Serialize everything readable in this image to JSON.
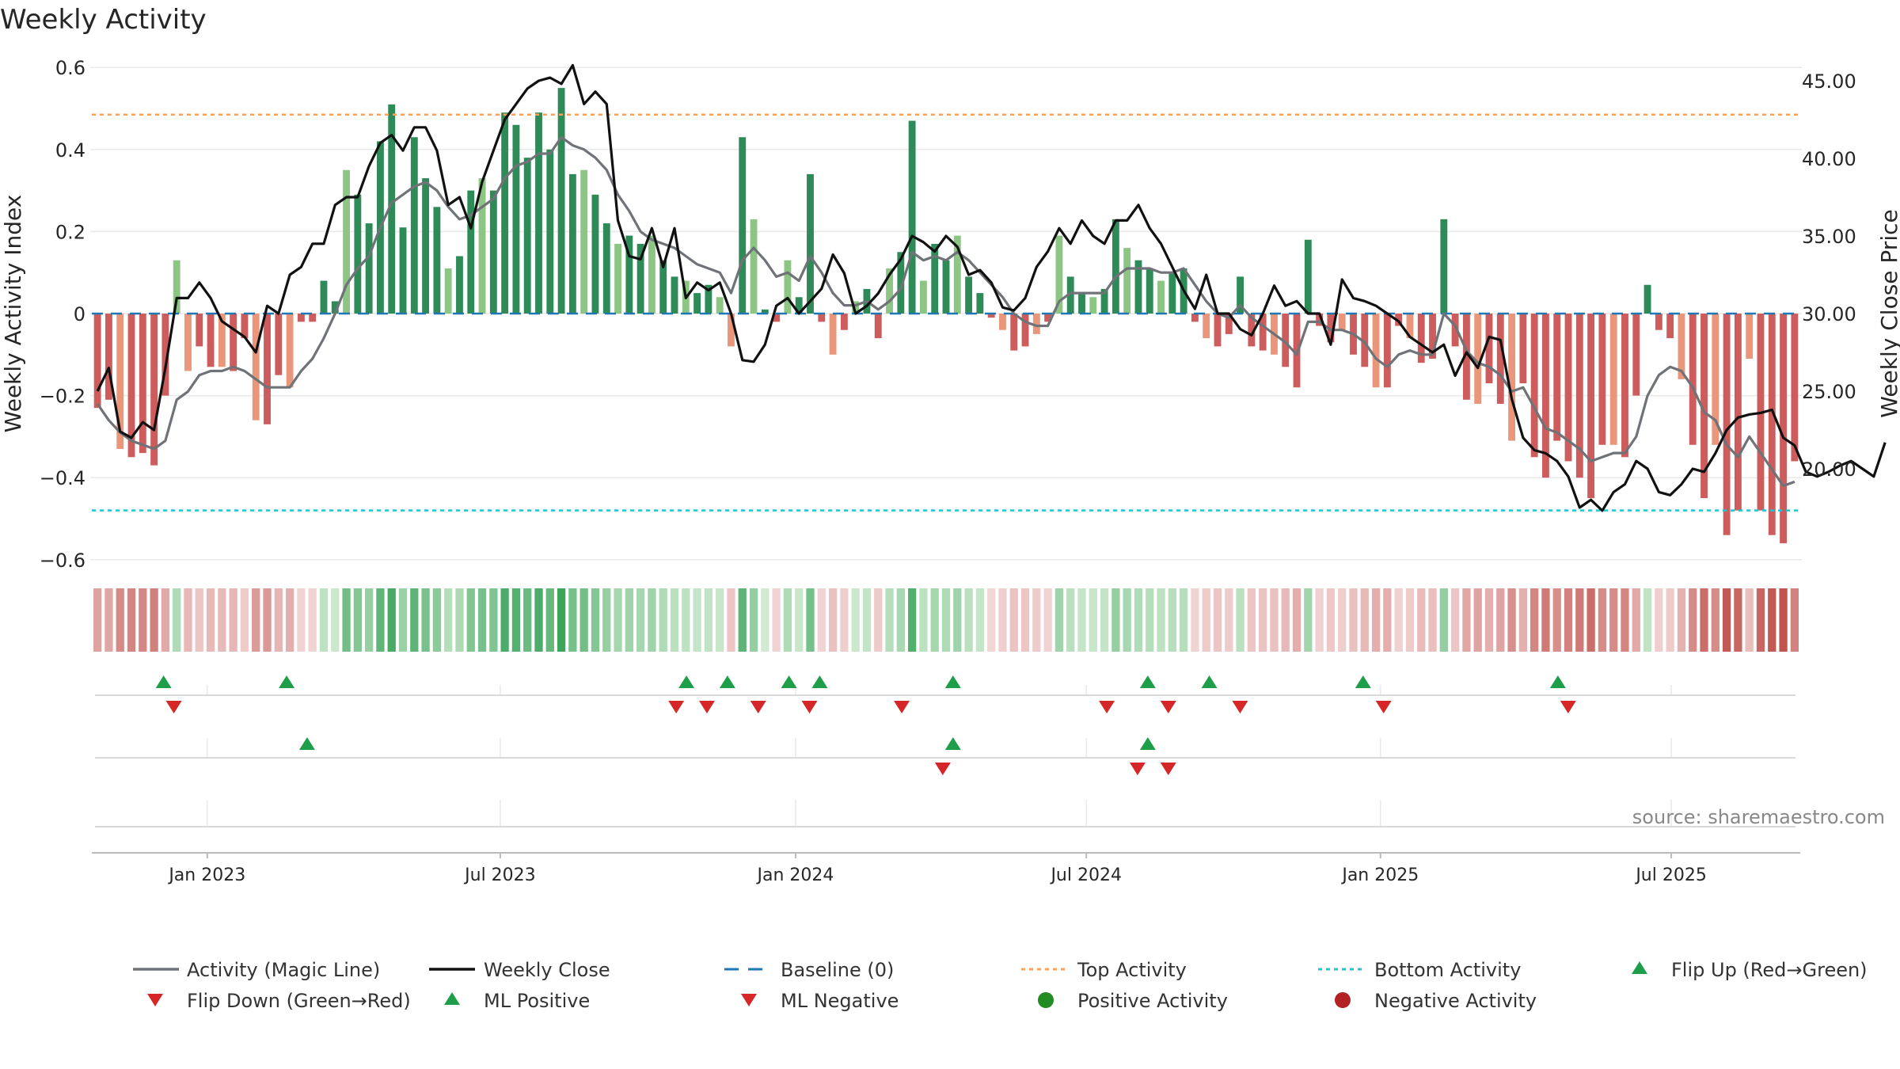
{
  "chart_data": {
    "type": "bar",
    "title": "Weekly Activity",
    "ylabel_left": "Weekly Activity Index",
    "ylabel_right": "Weekly Close Price",
    "ylim_left": [
      -0.66,
      0.6
    ],
    "yticks_left": [
      "0.6",
      "0.4",
      "0.2",
      "0",
      "−0.2",
      "−0.4",
      "−0.6"
    ],
    "yticks_left_values": [
      0.6,
      0.4,
      0.2,
      0,
      -0.2,
      -0.4,
      -0.6
    ],
    "ylim_right": [
      15.56,
      48.56
    ],
    "yticks_right": [
      "45.00",
      "40.00",
      "35.00",
      "30.00",
      "25.00",
      "20.00"
    ],
    "yticks_right_values": [
      45,
      40,
      35,
      30,
      25,
      20
    ],
    "x_ticks": [
      "Jan 2023",
      "Jul 2023",
      "Jan 2024",
      "Jul 2024",
      "Jan 2025",
      "Jul 2025"
    ],
    "x_ticks_week_index": [
      9.7,
      35.6,
      61.7,
      87.4,
      113.4,
      139.1
    ],
    "top_activity": 0.485,
    "bottom_activity": -0.48,
    "source": "source: sharemaestro.com",
    "activity": [
      -0.23,
      -0.21,
      -0.33,
      -0.35,
      -0.34,
      -0.37,
      -0.2,
      0.13,
      -0.14,
      -0.08,
      -0.13,
      -0.13,
      -0.14,
      -0.06,
      -0.26,
      -0.27,
      -0.15,
      -0.18,
      -0.02,
      -0.02,
      0.08,
      0.03,
      0.35,
      0.29,
      0.22,
      0.42,
      0.51,
      0.21,
      0.43,
      0.33,
      0.26,
      0.11,
      0.14,
      0.3,
      0.33,
      0.3,
      0.49,
      0.46,
      0.38,
      0.49,
      0.4,
      0.55,
      0.34,
      0.35,
      0.29,
      0.22,
      0.17,
      0.19,
      0.17,
      0.19,
      0.13,
      0.09,
      0.08,
      0.05,
      0.07,
      0.04,
      -0.08,
      0.43,
      0.23,
      0.01,
      -0.02,
      0.13,
      0.04,
      0.34,
      -0.02,
      -0.1,
      -0.04,
      0.03,
      0.06,
      -0.06,
      0.11,
      0.15,
      0.47,
      0.08,
      0.17,
      0.13,
      0.19,
      0.09,
      0.05,
      -0.01,
      -0.04,
      -0.09,
      -0.08,
      -0.05,
      -0.02,
      0.19,
      0.09,
      0.05,
      0.04,
      0.06,
      0.23,
      0.16,
      0.13,
      0.11,
      0.08,
      0.1,
      0.11,
      -0.02,
      -0.06,
      -0.08,
      -0.05,
      0.09,
      -0.08,
      -0.09,
      -0.1,
      -0.13,
      -0.18,
      0.18,
      -0.03,
      -0.07,
      -0.04,
      -0.1,
      -0.13,
      -0.18,
      -0.18,
      -0.03,
      -0.06,
      -0.12,
      -0.11,
      0.23,
      -0.08,
      -0.21,
      -0.22,
      -0.17,
      -0.22,
      -0.31,
      -0.17,
      -0.35,
      -0.4,
      -0.31,
      -0.36,
      -0.4,
      -0.45,
      -0.32,
      -0.32,
      -0.35,
      -0.2,
      0.07,
      -0.04,
      -0.06,
      -0.16,
      -0.32,
      -0.45,
      -0.32,
      -0.54,
      -0.48,
      -0.11,
      -0.48,
      -0.54,
      -0.56,
      -0.36
    ],
    "weekly_close": [
      25,
      26.5,
      22.4,
      22,
      23,
      22.5,
      26.5,
      31,
      31,
      32,
      31,
      29.5,
      29,
      28.5,
      27.5,
      30.5,
      30,
      32.5,
      33,
      34.5,
      34.5,
      37,
      37.5,
      37.5,
      39.5,
      41,
      41.5,
      40.5,
      42,
      42,
      40.5,
      37,
      37.5,
      35.5,
      38.5,
      40.5,
      42.5,
      43.5,
      44.5,
      45,
      45.2,
      44.8,
      46,
      43.5,
      44.3,
      43.5,
      36,
      33.7,
      33.5,
      35.5,
      33,
      35.5,
      31,
      32,
      31.5,
      32,
      30,
      27,
      26.9,
      28,
      30.5,
      31,
      30,
      30.8,
      31.6,
      33.8,
      32.6,
      30,
      30.5,
      31.3,
      32.5,
      33.5,
      35,
      34.6,
      34,
      35,
      34.3,
      32.5,
      32.8,
      32,
      30.4,
      30.2,
      31,
      33,
      34,
      35.5,
      34.5,
      36,
      35,
      34.5,
      36,
      36,
      37,
      35.5,
      34.5,
      33,
      31.5,
      30.3,
      32.5,
      30,
      30,
      29,
      28.6,
      30,
      31.8,
      30.5,
      30.8,
      30,
      30,
      28,
      32.2,
      31,
      30.8,
      30.5,
      30,
      29.5,
      28.5,
      28,
      27.5,
      28,
      26,
      27.5,
      26.5,
      28.5,
      28.3,
      24.5,
      22,
      21.2,
      21,
      20.5,
      19.5,
      17.5,
      18,
      17.3,
      18.5,
      19,
      20.5,
      20,
      18.5,
      18.3,
      19,
      20,
      19.8,
      21,
      22.5,
      23.3,
      23.5,
      23.6,
      23.8,
      22,
      21.5,
      19.8,
      19.5,
      19.8,
      20.2,
      20.5,
      20,
      19.5,
      21.7
    ],
    "magic_line": [
      -0.22,
      -0.26,
      -0.29,
      -0.31,
      -0.32,
      -0.33,
      -0.31,
      -0.21,
      -0.19,
      -0.15,
      -0.14,
      -0.14,
      -0.13,
      -0.14,
      -0.16,
      -0.18,
      -0.18,
      -0.18,
      -0.14,
      -0.11,
      -0.06,
      0.0,
      0.07,
      0.11,
      0.14,
      0.21,
      0.27,
      0.29,
      0.31,
      0.32,
      0.3,
      0.26,
      0.23,
      0.24,
      0.26,
      0.28,
      0.33,
      0.36,
      0.37,
      0.39,
      0.39,
      0.43,
      0.41,
      0.4,
      0.38,
      0.35,
      0.29,
      0.25,
      0.2,
      0.18,
      0.17,
      0.16,
      0.14,
      0.12,
      0.11,
      0.1,
      0.05,
      0.13,
      0.16,
      0.13,
      0.09,
      0.1,
      0.08,
      0.14,
      0.1,
      0.05,
      0.02,
      0.02,
      0.03,
      0.01,
      0.03,
      0.06,
      0.15,
      0.13,
      0.14,
      0.13,
      0.15,
      0.13,
      0.1,
      0.07,
      0.04,
      0.0,
      -0.02,
      -0.03,
      -0.03,
      0.03,
      0.05,
      0.05,
      0.05,
      0.05,
      0.09,
      0.11,
      0.11,
      0.11,
      0.1,
      0.1,
      0.11,
      0.07,
      0.03,
      0.0,
      -0.01,
      0.02,
      -0.01,
      -0.03,
      -0.05,
      -0.07,
      -0.1,
      -0.02,
      -0.02,
      -0.04,
      -0.04,
      -0.05,
      -0.07,
      -0.11,
      -0.13,
      -0.1,
      -0.09,
      -0.1,
      -0.1,
      0.0,
      -0.03,
      -0.09,
      -0.12,
      -0.13,
      -0.15,
      -0.19,
      -0.18,
      -0.23,
      -0.28,
      -0.29,
      -0.31,
      -0.33,
      -0.36,
      -0.35,
      -0.34,
      -0.34,
      -0.3,
      -0.2,
      -0.15,
      -0.13,
      -0.14,
      -0.18,
      -0.24,
      -0.26,
      -0.32,
      -0.35,
      -0.3,
      -0.34,
      -0.38,
      -0.42,
      -0.41
    ],
    "flip_up_weeks": [
      3.5,
      9.5,
      29,
      31,
      34,
      35.5,
      42,
      51.5,
      54.5,
      62,
      71.5
    ],
    "flip_down_weeks": [
      4,
      28.5,
      30,
      32.5,
      35,
      39.5,
      49.5,
      52.5,
      56,
      63,
      72
    ],
    "ml_positive_weeks": [
      10.5,
      42,
      51.5
    ],
    "ml_negative_weeks": [
      41.5,
      51,
      52.5
    ],
    "legend": {
      "magic_line": "Activity (Magic Line)",
      "weekly_close": "Weekly Close",
      "baseline": "Baseline (0)",
      "top_activity": "Top Activity",
      "bottom_activity": "Bottom Activity",
      "flip_up": "Flip Up (Red→Green)",
      "flip_down": "Flip Down (Green→Red)",
      "ml_positive": "ML Positive",
      "ml_negative": "ML Negative",
      "positive_activity": "Positive Activity",
      "negative_activity": "Negative Activity"
    },
    "colors": {
      "pos_strong": "#2e8b57",
      "pos_light": "#8cc584",
      "neg_strong": "#cd5c5c",
      "neg_light": "#e9967a",
      "magic_line": "#6f7378",
      "close_line": "#111111",
      "baseline": "#1f77b4",
      "top_line": "#f4a460",
      "bottom_line": "#20c5cf",
      "flip_up": "#1f9e4a",
      "flip_down": "#d62728",
      "pos_dot": "#228b22",
      "neg_dot": "#b22222"
    }
  }
}
